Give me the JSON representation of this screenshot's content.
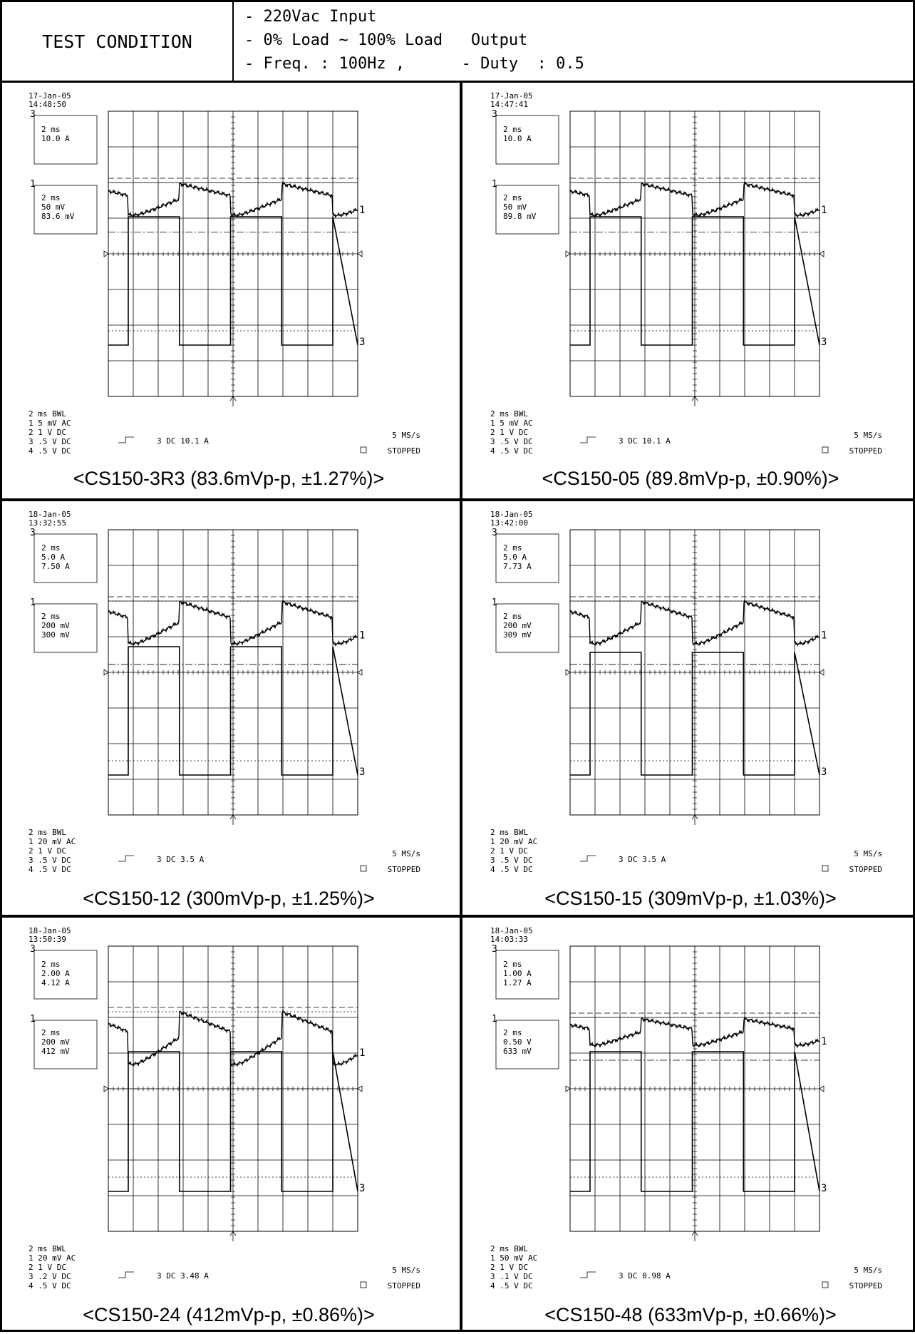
{
  "test_condition": {
    "label": "TEST CONDITION",
    "lines": [
      "- 220Vac Input",
      "- 0% Load ~ 100% Load   Output",
      "- Freq. : 100Hz ,      - Duty  : 0.5"
    ]
  },
  "panels": [
    {
      "date": "17-Jan-05",
      "time": "14:48:50",
      "box1": [
        "2 ms",
        "10.0 A"
      ],
      "box2": [
        "2 ms",
        "50 mV",
        "83.6 mV"
      ],
      "ch1": "5 mV  AC",
      "ch3": ".5  V  DC",
      "trigger": "DC 10.1 A",
      "caption": "<CS150-3R3 (83.6mVp-p, ±1.27%)>",
      "ripple_top": 0.26,
      "ripple_depth": 0.12,
      "square_top": 0.32,
      "square_bottom": 0.62
    },
    {
      "date": "17-Jan-05",
      "time": "14:47:41",
      "box1": [
        "2 ms",
        "10.0 A"
      ],
      "box2": [
        "2 ms",
        "50 mV",
        "89.8 mV"
      ],
      "ch1": "5 mV  AC",
      "ch3": ".5  V  DC",
      "trigger": "DC 10.1 A",
      "caption": "<CS150-05 (89.8mVp-p, ±0.90%)>",
      "ripple_top": 0.26,
      "ripple_depth": 0.12,
      "square_top": 0.32,
      "square_bottom": 0.62
    },
    {
      "date": "18-Jan-05",
      "time": "13:32:55",
      "box1": [
        "2 ms",
        "5.0 A",
        "7.50 A"
      ],
      "box2": [
        "2 ms",
        "200 mV",
        "300 mV"
      ],
      "ch1": "20 mV  AC",
      "ch3": ".5  V  DC",
      "trigger": "DC 3.5 A",
      "caption": "<CS150-12 (300mVp-p, ±1.25%)>",
      "ripple_top": 0.26,
      "ripple_depth": 0.16,
      "square_top": 0.36,
      "square_bottom": 0.66
    },
    {
      "date": "18-Jan-05",
      "time": "13:42:00",
      "box1": [
        "2 ms",
        "5.0 A",
        "7.73 A"
      ],
      "box2": [
        "2 ms",
        "200 mV",
        "309 mV"
      ],
      "ch1": "20 mV  AC",
      "ch3": ".5  V  DC",
      "trigger": "DC 3.5 A",
      "caption": "<CS150-15 (309mVp-p, ±1.03%)>",
      "ripple_top": 0.26,
      "ripple_depth": 0.16,
      "square_top": 0.38,
      "square_bottom": 0.66
    },
    {
      "date": "18-Jan-05",
      "time": "13:50:39",
      "box1": [
        "2 ms",
        "2.00 A",
        "4.12 A"
      ],
      "box2": [
        "2 ms",
        "200 mV",
        "412 mV"
      ],
      "ch1": "20 mV  AC",
      "ch3": ".2  V  DC",
      "trigger": "DC 3.48 A",
      "caption": "<CS150-24 (412mVp-p, ±0.86%)>",
      "ripple_top": 0.24,
      "ripple_depth": 0.2,
      "square_top": 0.32,
      "square_bottom": 0.66
    },
    {
      "date": "18-Jan-05",
      "time": "14:03:33",
      "box1": [
        "2 ms",
        "1.00 A",
        "1.27 A"
      ],
      "box2": [
        "2 ms",
        "0.50 V",
        "633 mV"
      ],
      "ch1": "50 mV  AC",
      "ch3": ".1  V  DC",
      "trigger": "DC 0.98 A",
      "caption": "<CS150-48 (633mVp-p, ±0.66%)>",
      "ripple_top": 0.26,
      "ripple_depth": 0.1,
      "square_top": 0.32,
      "square_bottom": 0.66
    }
  ],
  "common": {
    "timebase": "2 ms",
    "bwl": "BWL",
    "ch2": "1  V  DC",
    "ch4": ".5  V  DC",
    "sample_rate": "5 MS/s",
    "status": "STOPPED",
    "trace1_label": "1",
    "trace3_label": "3"
  }
}
